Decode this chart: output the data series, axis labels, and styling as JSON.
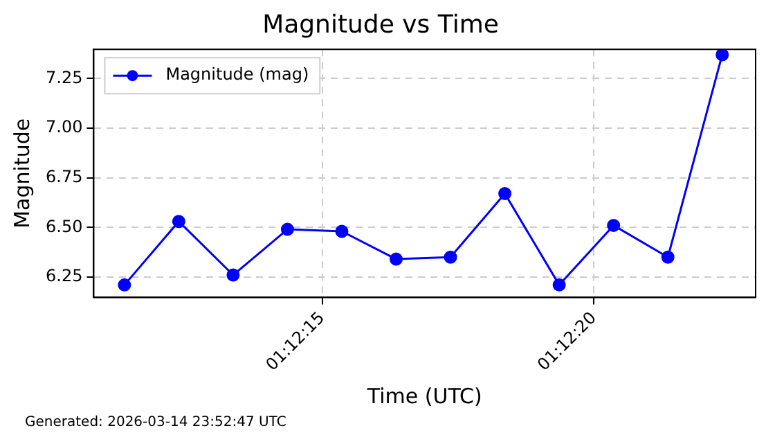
{
  "chart_data": {
    "type": "line",
    "title": "Magnitude vs Time",
    "xlabel": "Time (UTC)",
    "ylabel": "Magnitude",
    "x": [
      1.2031556,
      1.2034333,
      1.2037111,
      1.2039889,
      1.2042667,
      1.2045444,
      1.2048222,
      1.2051,
      1.2053778,
      1.2056556,
      1.2059333,
      1.2062111
    ],
    "series": [
      {
        "name": "Magnitude (mag)",
        "color": "#0000ff",
        "values": [
          6.21,
          6.53,
          6.26,
          6.49,
          6.48,
          6.34,
          6.35,
          6.67,
          6.21,
          6.51,
          6.35,
          7.37
        ]
      }
    ],
    "xlim": [
      1.2029986,
      1.2063817
    ],
    "xticks": [
      {
        "value": 1.2041667,
        "label": "01:12:15"
      },
      {
        "value": 1.2055556,
        "label": "01:12:20"
      }
    ],
    "ylim": [
      6.147,
      7.397
    ],
    "yticks": [
      6.25,
      {
        "value": 6.5,
        "label": "6.50"
      },
      6.75,
      {
        "value": 7.0,
        "label": "7.00"
      },
      7.25
    ],
    "grid": true,
    "legend": "top left",
    "marker": "circle",
    "line_style": "solid",
    "annotations": [
      "Generated: 2026-03-14 23:52:47 UTC"
    ]
  }
}
